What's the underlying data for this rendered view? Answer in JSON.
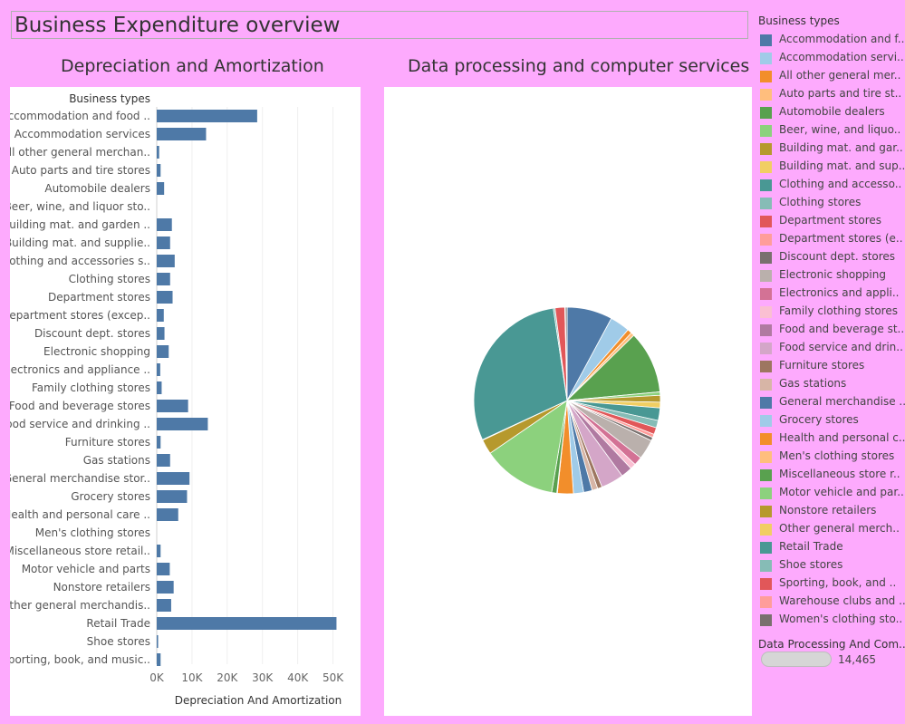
{
  "dashboard_title": "Business Expenditure overview",
  "left_title": "Depreciation and Amortization",
  "right_title": "Data processing and computer services",
  "legend": {
    "title": "Business types",
    "items": [
      {
        "label": "Accommodation and f..",
        "color": "#4e79a7"
      },
      {
        "label": "Accommodation servi..",
        "color": "#a0cbe8"
      },
      {
        "label": "All other general mer..",
        "color": "#f28e2b"
      },
      {
        "label": "Auto parts and tire st..",
        "color": "#ffbe7d"
      },
      {
        "label": "Automobile dealers",
        "color": "#59a14f"
      },
      {
        "label": "Beer, wine, and liquo..",
        "color": "#8cd17d"
      },
      {
        "label": "Building mat. and gar..",
        "color": "#b6992d"
      },
      {
        "label": "Building mat. and sup..",
        "color": "#f1ce63"
      },
      {
        "label": "Clothing and accesso..",
        "color": "#499894"
      },
      {
        "label": "Clothing stores",
        "color": "#86bcb6"
      },
      {
        "label": "Department stores",
        "color": "#e15759"
      },
      {
        "label": "Department stores (e..",
        "color": "#ff9d9a"
      },
      {
        "label": "Discount dept. stores",
        "color": "#79706e"
      },
      {
        "label": "Electronic shopping",
        "color": "#bab0ac"
      },
      {
        "label": "Electronics and appli..",
        "color": "#d37295"
      },
      {
        "label": "Family clothing stores",
        "color": "#fabfd2"
      },
      {
        "label": "Food and beverage st..",
        "color": "#b07aa1"
      },
      {
        "label": "Food service and drin..",
        "color": "#d4a6c8"
      },
      {
        "label": "Furniture stores",
        "color": "#9d7660"
      },
      {
        "label": "Gas stations",
        "color": "#d7b5a6"
      },
      {
        "label": "General merchandise ..",
        "color": "#4e79a7"
      },
      {
        "label": "Grocery stores",
        "color": "#a0cbe8"
      },
      {
        "label": "Health and personal c..",
        "color": "#f28e2b"
      },
      {
        "label": "Men's clothing stores",
        "color": "#ffbe7d"
      },
      {
        "label": "Miscellaneous store r..",
        "color": "#59a14f"
      },
      {
        "label": "Motor vehicle and par..",
        "color": "#8cd17d"
      },
      {
        "label": "Nonstore retailers",
        "color": "#b6992d"
      },
      {
        "label": "Other general merch..",
        "color": "#f1ce63"
      },
      {
        "label": "Retail Trade",
        "color": "#499894"
      },
      {
        "label": "Shoe stores",
        "color": "#86bcb6"
      },
      {
        "label": "Sporting, book, and ..",
        "color": "#e15759"
      },
      {
        "label": "Warehouse clubs and ..",
        "color": "#ff9d9a"
      },
      {
        "label": "Women's clothing sto..",
        "color": "#79706e"
      }
    ]
  },
  "size_legend": {
    "title": "Data Processing And Com..",
    "value": "14,465"
  },
  "chart_data": [
    {
      "type": "bar",
      "orientation": "horizontal",
      "title": "Depreciation and Amortization",
      "category_header": "Business types",
      "xlabel": "Depreciation And Amortization",
      "xlim": [
        0,
        55000
      ],
      "x_ticks": [
        0,
        10000,
        20000,
        30000,
        40000,
        50000
      ],
      "x_tick_labels": [
        "0K",
        "10K",
        "20K",
        "30K",
        "40K",
        "50K"
      ],
      "bar_color": "#4e79a7",
      "grid": "vertical",
      "categories": [
        "Accommodation and food ..",
        "Accommodation services",
        "All other general merchan..",
        "Auto parts and tire stores",
        "Automobile dealers",
        "Beer, wine, and liquor sto..",
        "Building mat. and garden ..",
        "Building mat. and supplie..",
        "Clothing and accessories s..",
        "Clothing stores",
        "Department stores",
        "Department stores (excep..",
        "Discount dept. stores",
        "Electronic shopping",
        "Electronics and appliance ..",
        "Family clothing stores",
        "Food and beverage stores",
        "Food service and drinking ..",
        "Furniture stores",
        "Gas stations",
        "General merchandise stor..",
        "Grocery stores",
        "Health and personal care ..",
        "Men's clothing stores",
        "Miscellaneous store retail..",
        "Motor vehicle and parts",
        "Nonstore retailers",
        "Other general merchandis..",
        "Retail Trade",
        "Shoe stores",
        "Sporting, book, and music.."
      ],
      "values": [
        28500,
        14000,
        700,
        1100,
        2100,
        0,
        4300,
        3800,
        5100,
        3800,
        4500,
        2000,
        2200,
        3400,
        1000,
        1400,
        8900,
        14500,
        1100,
        3800,
        9300,
        8600,
        6100,
        0,
        1100,
        3700,
        4800,
        4100,
        51000,
        400,
        1100
      ]
    },
    {
      "type": "pie",
      "title": "Data processing and computer services",
      "categories": [
        "Accommodation and food services",
        "Accommodation services",
        "All other general merchandise",
        "Auto parts and tire stores",
        "Automobile dealers",
        "Beer, wine, and liquor stores",
        "Building mat. and garden",
        "Building mat. and supplies",
        "Clothing and accessories stores",
        "Clothing stores",
        "Department stores",
        "Department stores (except)",
        "Discount dept. stores",
        "Electronic shopping",
        "Electronics and appliance",
        "Family clothing stores",
        "Food and beverage stores",
        "Food service and drinking",
        "Furniture stores",
        "Gas stations",
        "General merchandise",
        "Grocery stores",
        "Health and personal care",
        "Men's clothing stores",
        "Miscellaneous store retailers",
        "Motor vehicle and parts",
        "Nonstore retailers",
        "Other general merchandise",
        "Retail Trade",
        "Shoe stores",
        "Sporting, book, and music",
        "Warehouse clubs",
        "Women's clothing stores"
      ],
      "values": [
        8.0,
        3.5,
        0.8,
        0.6,
        11.0,
        0.6,
        1.2,
        1.0,
        2.2,
        1.3,
        1.2,
        0.6,
        0.6,
        3.5,
        1.5,
        1.0,
        2.0,
        4.0,
        0.8,
        1.0,
        1.5,
        1.8,
        2.8,
        0.1,
        0.9,
        13.0,
        2.6,
        0.1,
        30.0,
        0.3,
        1.7,
        0.1,
        0.3
      ],
      "colors": [
        "#4e79a7",
        "#a0cbe8",
        "#f28e2b",
        "#ffbe7d",
        "#59a14f",
        "#8cd17d",
        "#b6992d",
        "#f1ce63",
        "#499894",
        "#86bcb6",
        "#e15759",
        "#ff9d9a",
        "#79706e",
        "#bab0ac",
        "#d37295",
        "#fabfd2",
        "#b07aa1",
        "#d4a6c8",
        "#9d7660",
        "#d7b5a6",
        "#4e79a7",
        "#a0cbe8",
        "#f28e2b",
        "#ffbe7d",
        "#59a14f",
        "#8cd17d",
        "#b6992d",
        "#f1ce63",
        "#499894",
        "#86bcb6",
        "#e15759",
        "#ff9d9a",
        "#79706e"
      ]
    }
  ]
}
